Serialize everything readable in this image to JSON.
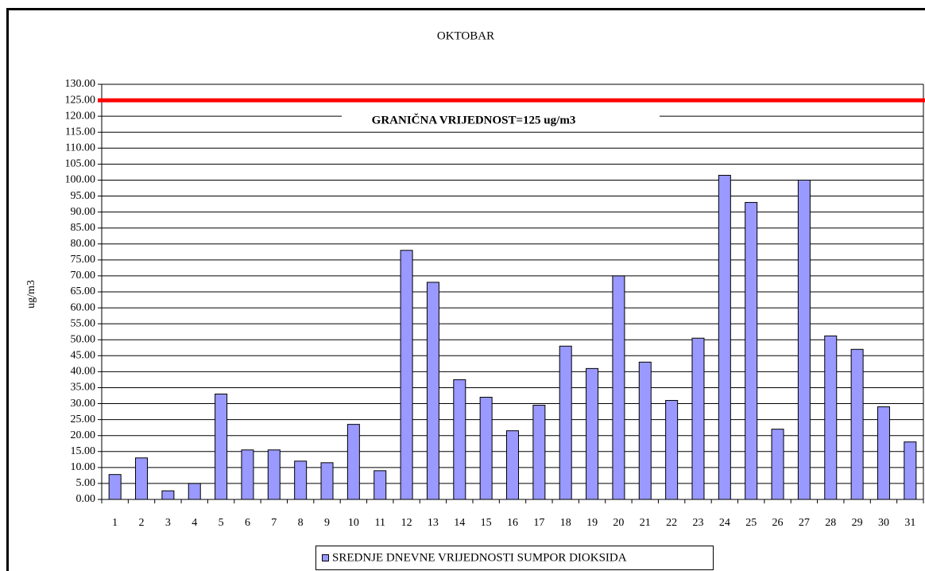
{
  "chart_data": {
    "type": "bar",
    "title": "OKTOBAR",
    "y_label": "ug/m3",
    "categories": [
      "1",
      "2",
      "3",
      "4",
      "5",
      "6",
      "7",
      "8",
      "9",
      "10",
      "11",
      "12",
      "13",
      "14",
      "15",
      "16",
      "17",
      "18",
      "19",
      "20",
      "21",
      "22",
      "23",
      "24",
      "25",
      "26",
      "27",
      "28",
      "29",
      "30",
      "31"
    ],
    "series": [
      {
        "name": "SREDNJE DNEVNE VRIJEDNOSTI SUMPOR DIOKSIDA",
        "color": "#9999ff",
        "values": [
          7.8,
          13,
          2.7,
          5,
          33,
          15.5,
          15.5,
          12,
          11.5,
          23.5,
          9,
          78,
          68,
          37.5,
          32,
          21.5,
          29.5,
          48,
          41,
          70,
          43,
          31,
          50.5,
          101.5,
          93,
          22,
          100,
          51.2,
          47,
          29,
          18
        ]
      }
    ],
    "limit_line": {
      "value": 125,
      "label": "GRANIČNA VRIJEDNOST=125 ug/m3",
      "color": "#ff0000"
    },
    "ylim": [
      0,
      130
    ],
    "yticks": [
      {
        "value": 0,
        "label": "0.00"
      },
      {
        "value": 5,
        "label": "5.00"
      },
      {
        "value": 10,
        "label": "10.00"
      },
      {
        "value": 15,
        "label": "15.00"
      },
      {
        "value": 20,
        "label": "20.00"
      },
      {
        "value": 25,
        "label": "25.00"
      },
      {
        "value": 30,
        "label": "30.00"
      },
      {
        "value": 35,
        "label": "35.00"
      },
      {
        "value": 40,
        "label": "40.00"
      },
      {
        "value": 45,
        "label": "45.00"
      },
      {
        "value": 50,
        "label": "50.00"
      },
      {
        "value": 55,
        "label": "55.00"
      },
      {
        "value": 60,
        "label": "60.00"
      },
      {
        "value": 65,
        "label": "65.00"
      },
      {
        "value": 70,
        "label": "70.00"
      },
      {
        "value": 75,
        "label": "75.00"
      },
      {
        "value": 80,
        "label": "80.00"
      },
      {
        "value": 85,
        "label": "85.00"
      },
      {
        "value": 90,
        "label": "90.00"
      },
      {
        "value": 95,
        "label": "95.00"
      },
      {
        "value": 100,
        "label": "100.00"
      },
      {
        "value": 105,
        "label": "105.00"
      },
      {
        "value": 110,
        "label": "110.00"
      },
      {
        "value": 115,
        "label": "115.00"
      },
      {
        "value": 120,
        "label": "120.00"
      },
      {
        "value": 125,
        "label": "125.00"
      },
      {
        "value": 130,
        "label": "130.00"
      }
    ],
    "grid": true,
    "legend": "bottom"
  }
}
